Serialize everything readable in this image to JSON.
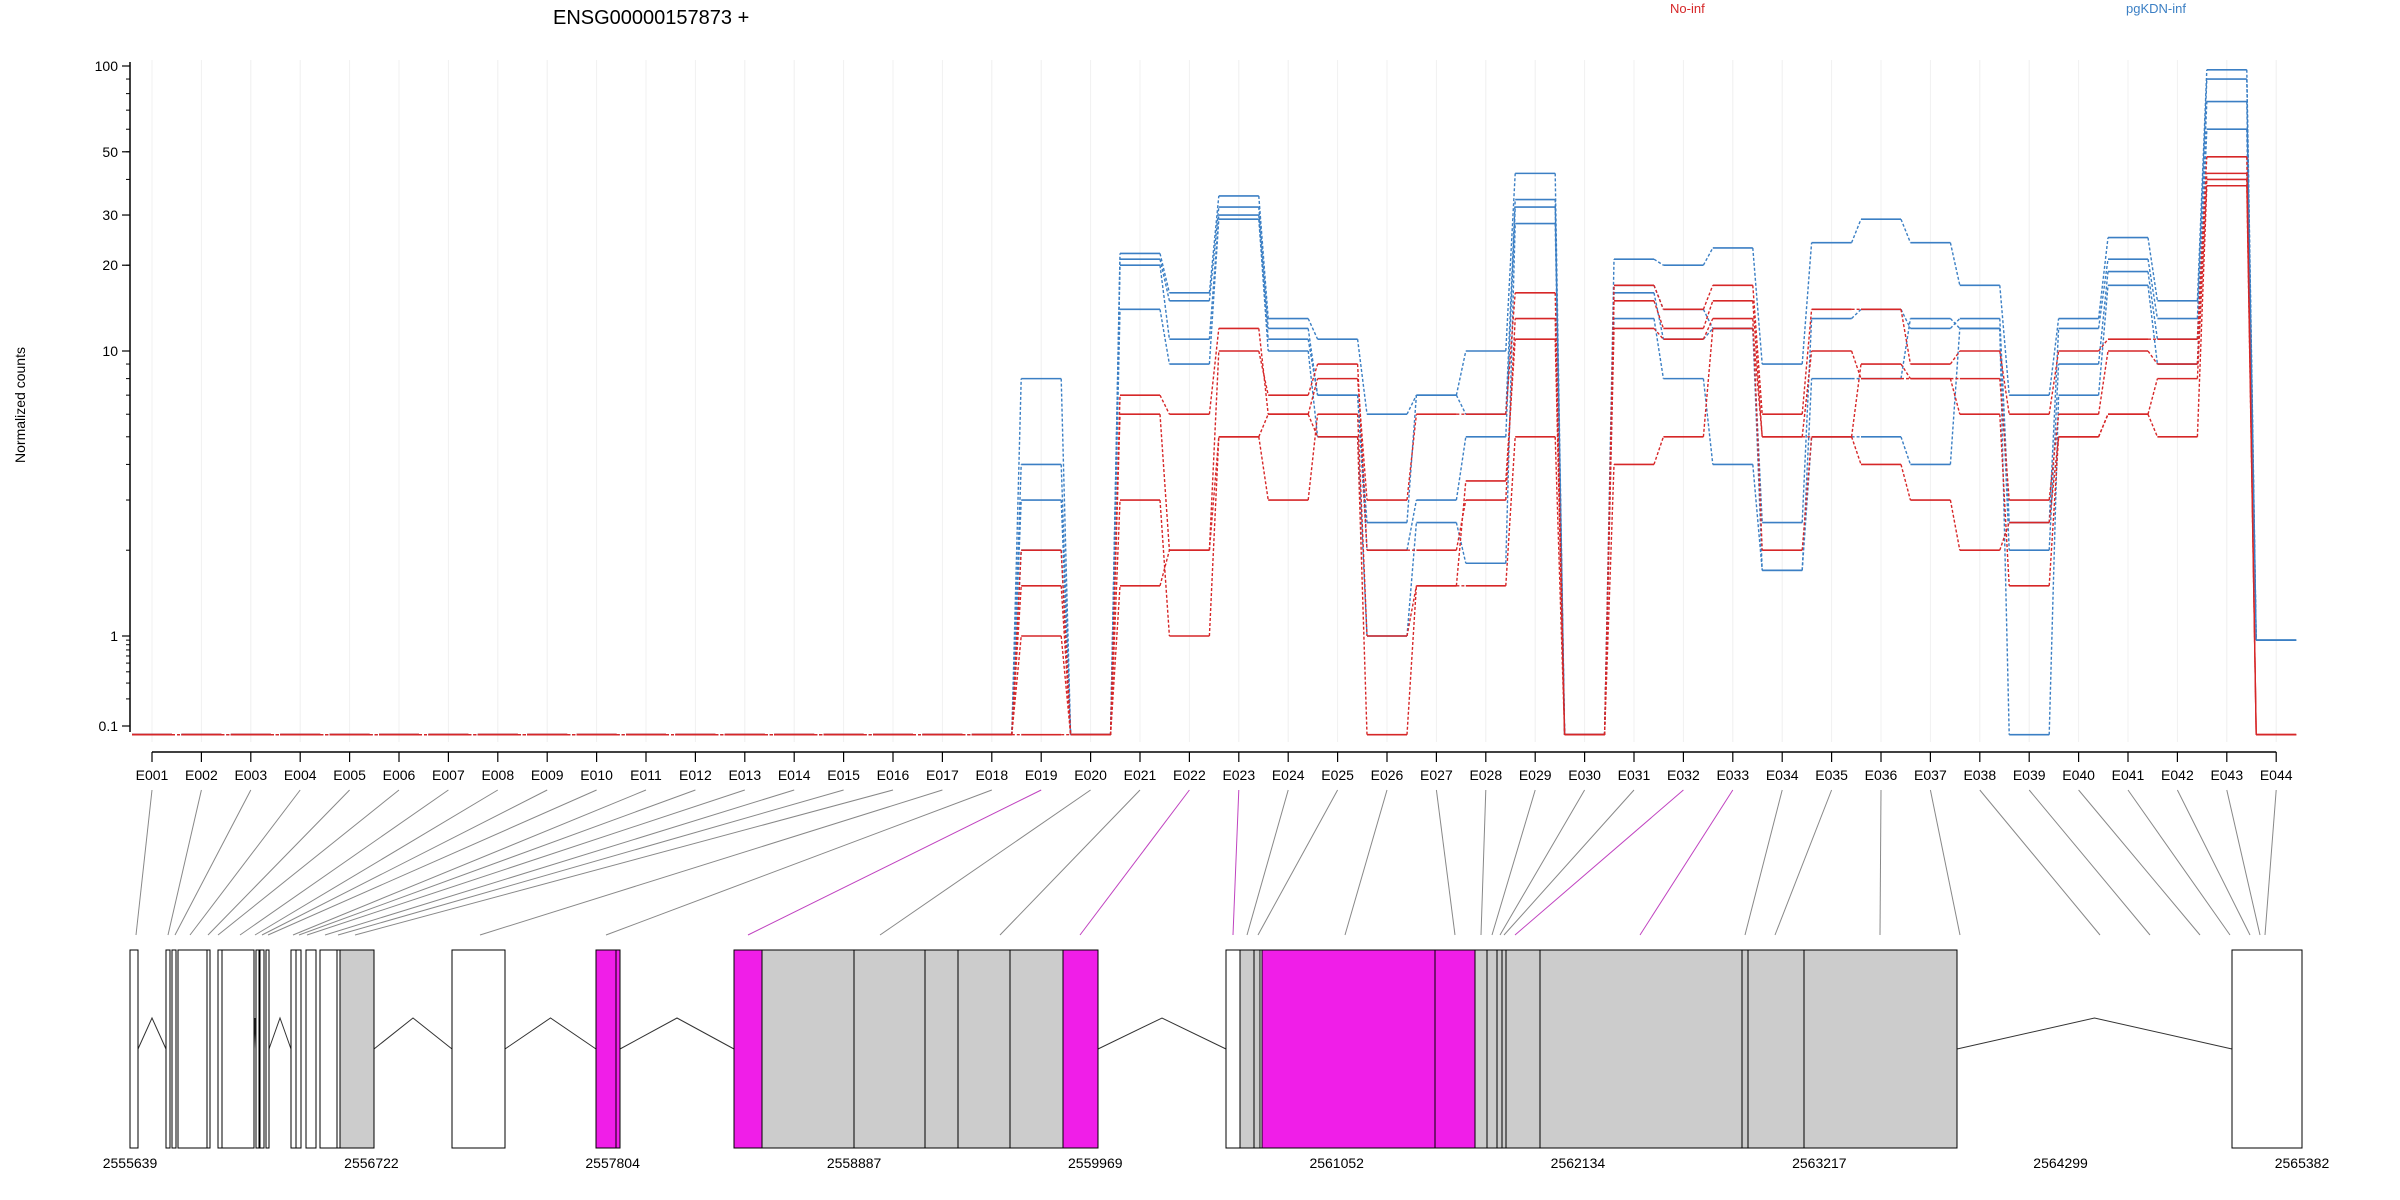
{
  "chart_data": {
    "type": "line",
    "title": "ENSG00000157873 +",
    "ylabel": "Normalized counts",
    "xlabel": "",
    "y_scale": "log",
    "y_ticks": [
      "100",
      "50",
      "30",
      "20",
      "10",
      "1",
      "0.1"
    ],
    "ylim": [
      0.08,
      100
    ],
    "categories": [
      "E001",
      "E002",
      "E003",
      "E004",
      "E005",
      "E006",
      "E007",
      "E008",
      "E009",
      "E010",
      "E011",
      "E012",
      "E013",
      "E014",
      "E015",
      "E016",
      "E017",
      "E018",
      "E019",
      "E020",
      "E021",
      "E022",
      "E023",
      "E024",
      "E025",
      "E026",
      "E027",
      "E028",
      "E029",
      "E030",
      "E031",
      "E032",
      "E033",
      "E034",
      "E035",
      "E036",
      "E037",
      "E038",
      "E039",
      "E040",
      "E041",
      "E042",
      "E043",
      "E044"
    ],
    "legend": [
      {
        "name": "No-inf",
        "color": "#d62728"
      },
      {
        "name": "pgKDN-inf",
        "color": "#3b7fc4"
      }
    ],
    "series": [
      {
        "group": "No-inf",
        "values": [
          0.08,
          0.08,
          0.08,
          0.08,
          0.08,
          0.08,
          0.08,
          0.08,
          0.08,
          0.08,
          0.08,
          0.08,
          0.08,
          0.08,
          0.08,
          0.08,
          0.08,
          0.08,
          2.0,
          0.08,
          7.0,
          6.0,
          12.0,
          6.0,
          8.0,
          3.0,
          6.0,
          6.0,
          16.0,
          0.08,
          17.0,
          14.0,
          17.0,
          6.0,
          14.0,
          14.0,
          9.0,
          10.0,
          6.0,
          10.0,
          11.0,
          11.0,
          48.0,
          0.08
        ]
      },
      {
        "group": "No-inf",
        "values": [
          0.08,
          0.08,
          0.08,
          0.08,
          0.08,
          0.08,
          0.08,
          0.08,
          0.08,
          0.08,
          0.08,
          0.08,
          0.08,
          0.08,
          0.08,
          0.08,
          0.08,
          0.08,
          1.5,
          0.08,
          6.0,
          2.0,
          10.0,
          7.0,
          9.0,
          2.0,
          2.0,
          3.0,
          13.0,
          0.08,
          15.0,
          12.0,
          15.0,
          5.0,
          10.0,
          8.0,
          8.0,
          8.0,
          3.0,
          6.0,
          10.0,
          9.0,
          42.0,
          0.08
        ]
      },
      {
        "group": "No-inf",
        "values": [
          0.08,
          0.08,
          0.08,
          0.08,
          0.08,
          0.08,
          0.08,
          0.08,
          0.08,
          0.08,
          0.08,
          0.08,
          0.08,
          0.08,
          0.08,
          0.08,
          0.08,
          0.08,
          1.0,
          0.08,
          3.0,
          1.0,
          5.0,
          3.0,
          6.0,
          1.0,
          1.5,
          3.5,
          11.0,
          0.08,
          12.0,
          11.0,
          13.0,
          2.0,
          5.0,
          9.0,
          8.0,
          6.0,
          1.5,
          5.0,
          6.0,
          8.0,
          40.0,
          0.08
        ]
      },
      {
        "group": "No-inf",
        "values": [
          0.08,
          0.08,
          0.08,
          0.08,
          0.08,
          0.08,
          0.08,
          0.08,
          0.08,
          0.08,
          0.08,
          0.08,
          0.08,
          0.08,
          0.08,
          0.08,
          0.08,
          0.08,
          0.08,
          0.08,
          1.5,
          2.0,
          5.0,
          6.0,
          5.0,
          0.08,
          1.5,
          1.5,
          5.0,
          0.08,
          4.0,
          5.0,
          12.0,
          5.0,
          5.0,
          4.0,
          3.0,
          2.0,
          2.5,
          5.0,
          6.0,
          5.0,
          38.0,
          0.08
        ]
      },
      {
        "group": "pgKDN-inf",
        "values": [
          0.08,
          0.08,
          0.08,
          0.08,
          0.08,
          0.08,
          0.08,
          0.08,
          0.08,
          0.08,
          0.08,
          0.08,
          0.08,
          0.08,
          0.08,
          0.08,
          0.08,
          0.08,
          8.0,
          0.08,
          22.0,
          16.0,
          35.0,
          13.0,
          11.0,
          6.0,
          7.0,
          10.0,
          42.0,
          0.08,
          21.0,
          20.0,
          23.0,
          9.0,
          24.0,
          29.0,
          24.0,
          17.0,
          7.0,
          13.0,
          25.0,
          15.0,
          97.0,
          0.9
        ]
      },
      {
        "group": "pgKDN-inf",
        "values": [
          0.08,
          0.08,
          0.08,
          0.08,
          0.08,
          0.08,
          0.08,
          0.08,
          0.08,
          0.08,
          0.08,
          0.08,
          0.08,
          0.08,
          0.08,
          0.08,
          0.08,
          0.08,
          4.0,
          0.08,
          21.0,
          15.0,
          32.0,
          12.0,
          7.0,
          2.5,
          7.0,
          6.0,
          34.0,
          0.08,
          17.0,
          14.0,
          12.0,
          2.5,
          13.0,
          14.0,
          12.0,
          13.0,
          2.5,
          12.0,
          21.0,
          13.0,
          90.0,
          0.9
        ]
      },
      {
        "group": "pgKDN-inf",
        "values": [
          0.08,
          0.08,
          0.08,
          0.08,
          0.08,
          0.08,
          0.08,
          0.08,
          0.08,
          0.08,
          0.08,
          0.08,
          0.08,
          0.08,
          0.08,
          0.08,
          0.08,
          0.08,
          3.0,
          0.08,
          20.0,
          11.0,
          30.0,
          11.0,
          7.0,
          2.0,
          3.0,
          5.0,
          32.0,
          0.08,
          16.0,
          11.0,
          12.0,
          1.7,
          8.0,
          8.0,
          13.0,
          12.0,
          2.0,
          9.0,
          19.0,
          11.0,
          75.0,
          0.9
        ]
      },
      {
        "group": "pgKDN-inf",
        "values": [
          0.08,
          0.08,
          0.08,
          0.08,
          0.08,
          0.08,
          0.08,
          0.08,
          0.08,
          0.08,
          0.08,
          0.08,
          0.08,
          0.08,
          0.08,
          0.08,
          0.08,
          0.08,
          2.0,
          0.08,
          14.0,
          9.0,
          29.0,
          10.0,
          5.0,
          1.0,
          2.5,
          1.8,
          28.0,
          0.08,
          13.0,
          8.0,
          4.0,
          1.7,
          5.0,
          5.0,
          4.0,
          12.0,
          0.08,
          7.0,
          17.0,
          9.0,
          60.0,
          0.9
        ]
      }
    ],
    "gene_model": {
      "coordinate_ticks": [
        "2555639",
        "2556722",
        "2557804",
        "2558887",
        "2559969",
        "2561052",
        "2562134",
        "2563217",
        "2564299",
        "2565382"
      ],
      "highlighted_exons": [
        "E019",
        "E022",
        "E023",
        "E032",
        "E033"
      ],
      "colors": {
        "highlight": "#f01ee8",
        "exon": "#cccccc",
        "utr": "#ffffff",
        "edge": "#000000",
        "link": "#888888",
        "link_highlight": "#c043c0"
      }
    }
  }
}
